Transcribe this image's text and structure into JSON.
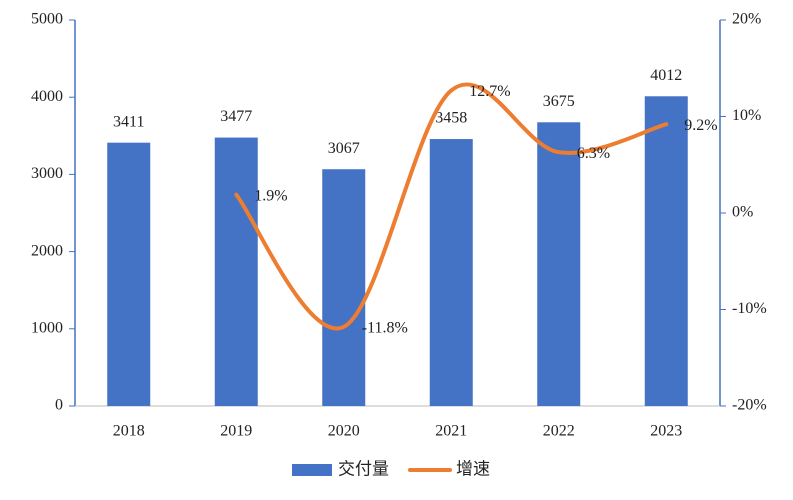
{
  "chart_data": {
    "type": "bar-line",
    "categories": [
      "2018",
      "2019",
      "2020",
      "2021",
      "2022",
      "2023"
    ],
    "series": [
      {
        "name": "交付量",
        "type": "bar",
        "color": "#4472c4",
        "values": [
          3411,
          3477,
          3067,
          3458,
          3675,
          4012
        ]
      },
      {
        "name": "增速",
        "type": "line",
        "axis": "y2",
        "color": "#ed7d31",
        "values": [
          null,
          1.9,
          -11.8,
          12.7,
          6.3,
          9.2
        ],
        "value_labels": [
          null,
          "1.9%",
          "-11.8%",
          "12.7%",
          "6.3%",
          "9.2%"
        ]
      }
    ],
    "ylim": [
      0,
      5000
    ],
    "yticks": [
      0,
      1000,
      2000,
      3000,
      4000,
      5000
    ],
    "y2lim": [
      -20,
      20
    ],
    "y2ticks": [
      {
        "value": -20,
        "label": "-20%"
      },
      {
        "value": -10,
        "label": "-10%"
      },
      {
        "value": 0,
        "label": "0%"
      },
      {
        "value": 10,
        "label": "10%"
      },
      {
        "value": 20,
        "label": "20%"
      }
    ],
    "legend": "bottom"
  }
}
